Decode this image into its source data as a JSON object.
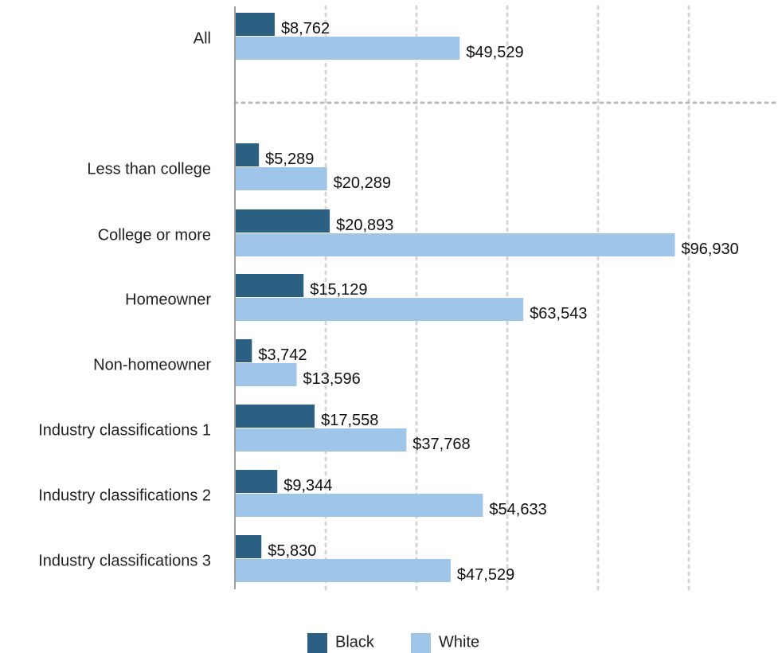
{
  "chart_data": {
    "type": "bar",
    "orientation": "horizontal",
    "title": "",
    "xlabel": "",
    "ylabel": "",
    "xlim": [
      0,
      100000
    ],
    "grid": true,
    "legend_position": "bottom",
    "categories": [
      "All",
      "Less than college",
      "College or more",
      "Homeowner",
      "Non-homeowner",
      "Industry classifications 1",
      "Industry classifications 2",
      "Industry classifications 3"
    ],
    "series": [
      {
        "name": "Black",
        "color": "#2b6083",
        "values": [
          8762,
          5289,
          20893,
          15129,
          3742,
          17558,
          9344,
          5830
        ],
        "labels": [
          "$8,762",
          "$5,289",
          "$20,893",
          "$15,129",
          "$3,742",
          "$17,558",
          "$9,344",
          "$5,830"
        ]
      },
      {
        "name": "White",
        "color": "#9fc5e8",
        "values": [
          49529,
          20289,
          96930,
          63543,
          13596,
          37768,
          54633,
          47529
        ],
        "labels": [
          "$49,529",
          "$20,289",
          "$96,930",
          "$63,543",
          "$13,596",
          "$37,768",
          "$54,633",
          "$47,529"
        ]
      }
    ]
  }
}
